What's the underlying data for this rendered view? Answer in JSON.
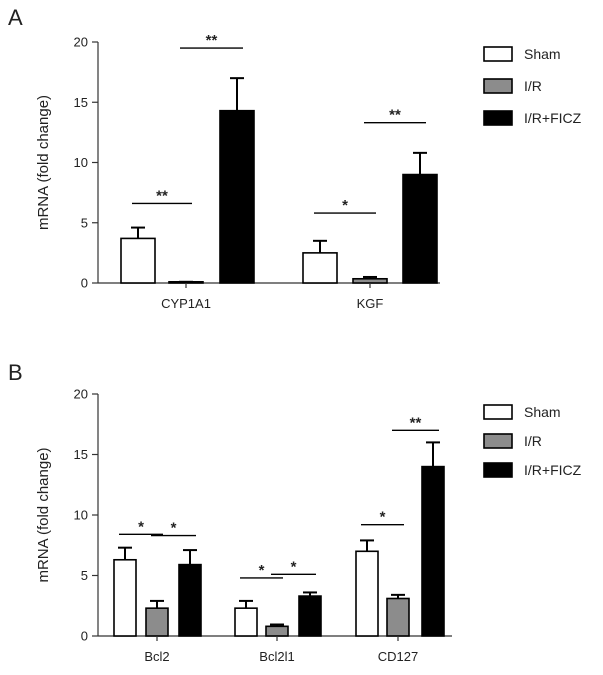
{
  "chart_data": [
    {
      "type": "bar",
      "panel": "A",
      "ylabel": "mRNA (fold change)",
      "ylim": [
        0,
        20
      ],
      "yticks": [
        0,
        5,
        10,
        15,
        20
      ],
      "categories": [
        "CYP1A1",
        "KGF"
      ],
      "series": [
        {
          "name": "Sham",
          "color": "#ffffff",
          "values": [
            3.7,
            2.5
          ],
          "errors": [
            0.9,
            1.0
          ]
        },
        {
          "name": "I/R",
          "color": "#8c8c8c",
          "values": [
            0.05,
            0.35
          ],
          "errors": [
            0.05,
            0.15
          ]
        },
        {
          "name": "I/R+FICZ",
          "color": "#000000",
          "values": [
            14.3,
            9.0
          ],
          "errors": [
            2.7,
            1.8
          ]
        }
      ],
      "significance": [
        {
          "category": 0,
          "from": 0,
          "to": 1,
          "label": "**",
          "y": 6.6
        },
        {
          "category": 0,
          "from": 1,
          "to": 2,
          "label": "**",
          "y": 19.5
        },
        {
          "category": 1,
          "from": 0,
          "to": 1,
          "label": "*",
          "y": 5.8
        },
        {
          "category": 1,
          "from": 1,
          "to": 2,
          "label": "**",
          "y": 13.3
        }
      ],
      "legend": "top-right"
    },
    {
      "type": "bar",
      "panel": "B",
      "ylabel": "mRNA (fold change)",
      "ylim": [
        0,
        20
      ],
      "yticks": [
        0,
        5,
        10,
        15,
        20
      ],
      "categories": [
        "Bcl2",
        "Bcl2l1",
        "CD127"
      ],
      "series": [
        {
          "name": "Sham",
          "color": "#ffffff",
          "values": [
            6.3,
            2.3,
            7.0
          ],
          "errors": [
            1.0,
            0.6,
            0.9
          ]
        },
        {
          "name": "I/R",
          "color": "#8c8c8c",
          "values": [
            2.3,
            0.8,
            3.1
          ],
          "errors": [
            0.6,
            0.15,
            0.3
          ]
        },
        {
          "name": "I/R+FICZ",
          "color": "#000000",
          "values": [
            5.9,
            3.3,
            14.0
          ],
          "errors": [
            1.2,
            0.3,
            2.0
          ]
        }
      ],
      "significance": [
        {
          "category": 0,
          "from": 0,
          "to": 1,
          "label": "*",
          "y": 8.4
        },
        {
          "category": 0,
          "from": 1,
          "to": 2,
          "label": "*",
          "y": 8.3
        },
        {
          "category": 1,
          "from": 0,
          "to": 1,
          "label": "*",
          "y": 4.8
        },
        {
          "category": 1,
          "from": 1,
          "to": 2,
          "label": "*",
          "y": 5.1
        },
        {
          "category": 2,
          "from": 0,
          "to": 1,
          "label": "*",
          "y": 9.2
        },
        {
          "category": 2,
          "from": 1,
          "to": 2,
          "label": "**",
          "y": 17.0
        }
      ],
      "legend": "top-right"
    }
  ]
}
